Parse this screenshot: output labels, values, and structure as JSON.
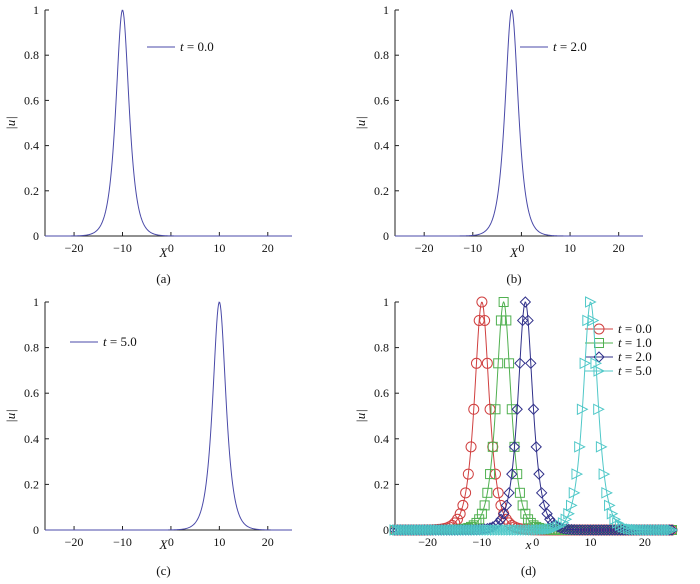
{
  "chart_data": [
    {
      "type": "line",
      "panel_label": "(a)",
      "xlabel": "X",
      "ylabel": "|u|",
      "xlim": [
        -26,
        25
      ],
      "ylim": [
        0,
        1
      ],
      "xticks": [
        -20,
        -10,
        0,
        10,
        20
      ],
      "yticks": [
        0,
        0.2,
        0.4,
        0.6,
        0.8,
        1
      ],
      "legend": "top-right",
      "series": [
        {
          "name": "t = 0.0",
          "name_var": "t",
          "name_value": "= 0.0",
          "center": -10,
          "amplitude": 1,
          "width": 1.2,
          "color": "#4a4aa8",
          "marker": "none"
        }
      ]
    },
    {
      "type": "line",
      "panel_label": "(b)",
      "xlabel": "X",
      "ylabel": "|u|",
      "xlim": [
        -26,
        25
      ],
      "ylim": [
        0,
        1
      ],
      "xticks": [
        -20,
        -10,
        0,
        10,
        20
      ],
      "yticks": [
        0,
        0.2,
        0.4,
        0.6,
        0.8,
        1
      ],
      "legend": "top-right",
      "series": [
        {
          "name": "t = 2.0",
          "name_var": "t",
          "name_value": "= 2.0",
          "center": -2,
          "amplitude": 1,
          "width": 1.2,
          "color": "#4a4aa8",
          "marker": "none"
        }
      ]
    },
    {
      "type": "line",
      "panel_label": "(c)",
      "xlabel": "X",
      "ylabel": "|u|",
      "xlim": [
        -26,
        25
      ],
      "ylim": [
        0,
        1
      ],
      "xticks": [
        -20,
        -10,
        0,
        10,
        20
      ],
      "yticks": [
        0,
        0.2,
        0.4,
        0.6,
        0.8,
        1
      ],
      "legend": "top-left",
      "series": [
        {
          "name": "t = 5.0",
          "name_var": "t",
          "name_value": "= 5.0",
          "center": 10,
          "amplitude": 1,
          "width": 1.2,
          "color": "#4a4aa8",
          "marker": "none"
        }
      ]
    },
    {
      "type": "line",
      "panel_label": "(d)",
      "xlabel": "x",
      "ylabel": "|u|",
      "xlim": [
        -26,
        25
      ],
      "ylim": [
        0,
        1
      ],
      "xticks": [
        -20,
        -10,
        0,
        10,
        20
      ],
      "yticks": [
        0,
        0.2,
        0.4,
        0.6,
        0.8,
        1
      ],
      "legend": "top-right",
      "series": [
        {
          "name": "t = 0.0",
          "name_var": "t",
          "name_value": "= 0.0",
          "center": -10,
          "amplitude": 1,
          "width": 1.2,
          "color": "#d04040",
          "marker": "circle"
        },
        {
          "name": "t = 1.0",
          "name_var": "t",
          "name_value": "= 1.0",
          "center": -6,
          "amplitude": 1,
          "width": 1.2,
          "color": "#50b050",
          "marker": "square"
        },
        {
          "name": "t = 2.0",
          "name_var": "t",
          "name_value": "= 2.0",
          "center": -2,
          "amplitude": 1,
          "width": 1.2,
          "color": "#30308a",
          "marker": "diamond"
        },
        {
          "name": "t = 5.0",
          "name_var": "t",
          "name_value": "= 5.0",
          "center": 10,
          "amplitude": 1,
          "width": 1.2,
          "color": "#50c8c8",
          "marker": "triangle-right"
        }
      ]
    }
  ]
}
